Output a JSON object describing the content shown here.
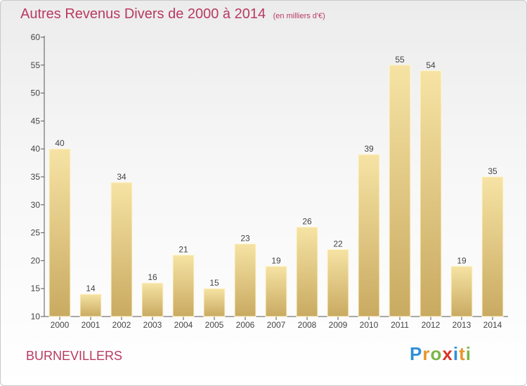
{
  "header": {
    "title": "Autres Revenus Divers de 2000 à 2014",
    "subtitle": "(en milliers d'€)"
  },
  "footer": {
    "place": "BURNEVILLERS",
    "logo": "Proxiti"
  },
  "colors": {
    "title": "#b83a62",
    "bar_top": "#f6e3a4",
    "bar_bottom": "#c9aa61"
  },
  "chart_data": {
    "type": "bar",
    "title": "Autres Revenus Divers de 2000 à 2014",
    "xlabel": "",
    "ylabel": "",
    "categories": [
      "2000",
      "2001",
      "2002",
      "2003",
      "2004",
      "2005",
      "2006",
      "2007",
      "2008",
      "2009",
      "2010",
      "2011",
      "2012",
      "2013",
      "2014"
    ],
    "values": [
      40,
      14,
      34,
      16,
      21,
      15,
      23,
      19,
      26,
      22,
      39,
      55,
      54,
      19,
      35
    ],
    "ylim": [
      10,
      60
    ],
    "yticks": [
      10,
      15,
      20,
      25,
      30,
      35,
      40,
      45,
      50,
      55,
      60
    ],
    "grid": false,
    "legend": "none"
  }
}
